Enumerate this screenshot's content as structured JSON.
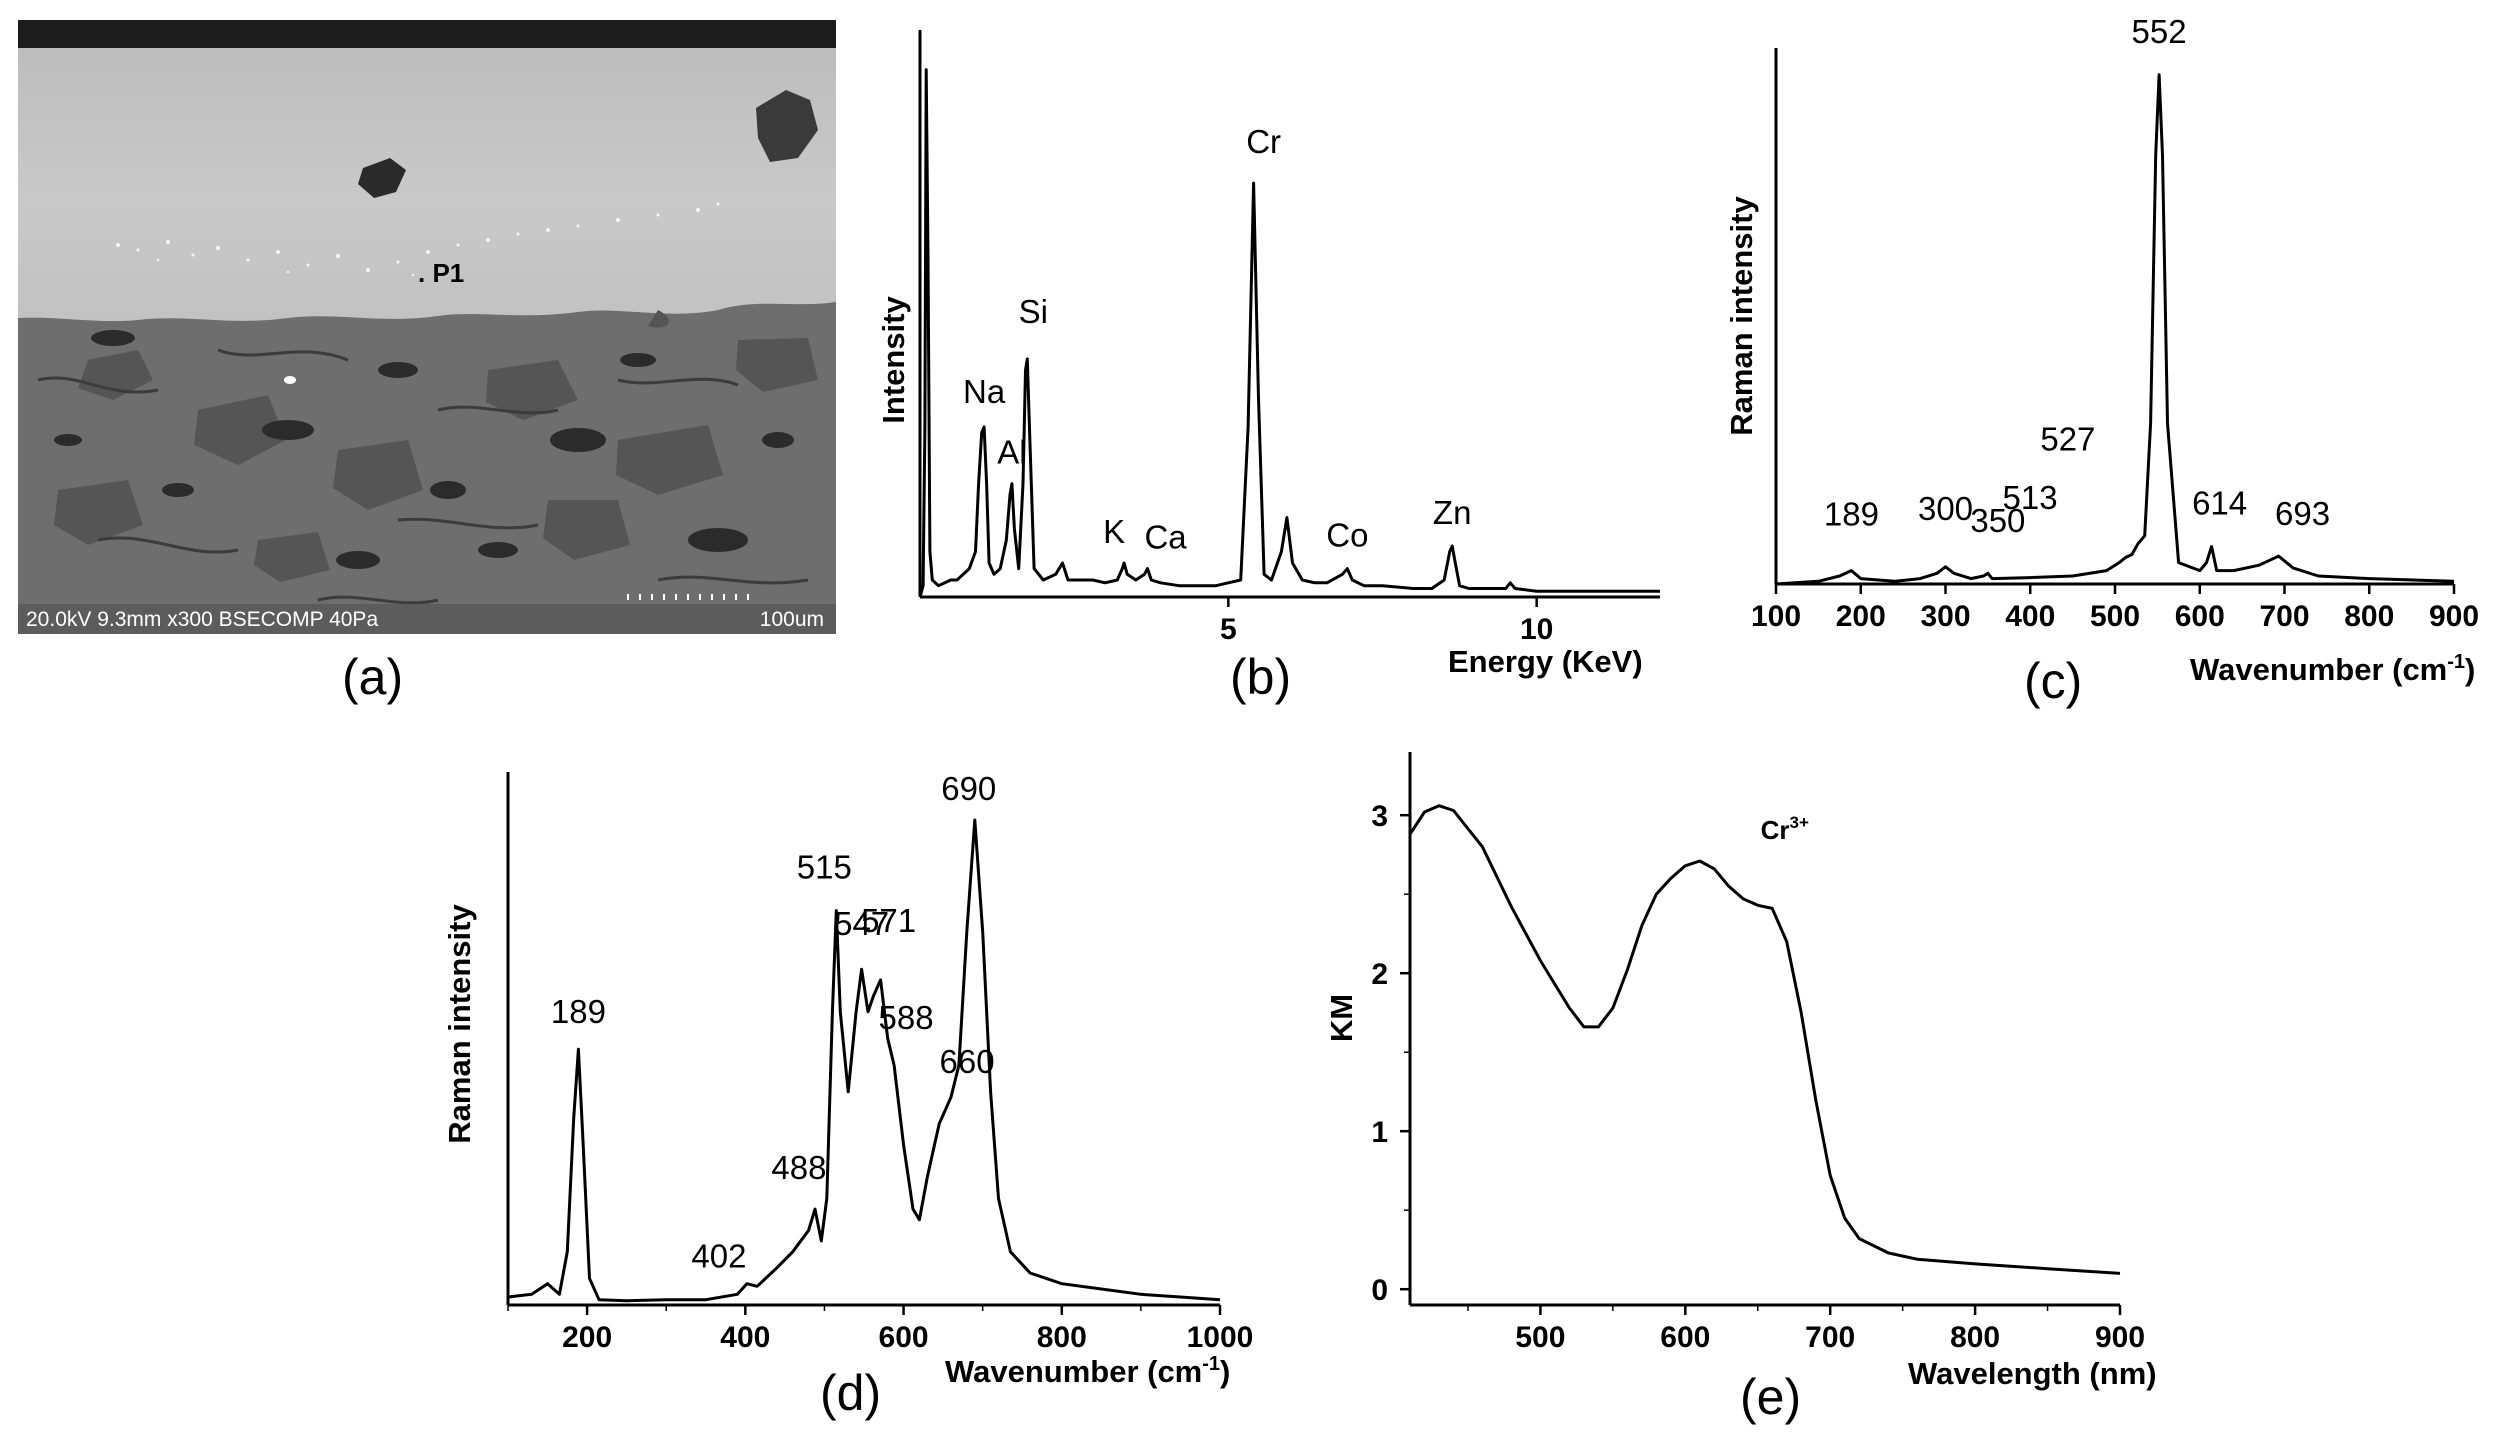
{
  "panel_labels": [
    "(a)",
    "(b)",
    "(c)",
    "(d)",
    "(e)"
  ],
  "sem_image": {
    "info_bar": "20.0kV 9.3mm x300 BSECOMP 40Pa",
    "scale_label": "100um",
    "point_label": ". P1"
  },
  "chart_data": [
    {
      "panel": "b",
      "type": "line",
      "title": "",
      "xlabel": "Energy (KeV)",
      "ylabel": "Intensity",
      "xlim": [
        0,
        12
      ],
      "ylim": [
        0,
        100
      ],
      "xticks": [
        5,
        10
      ],
      "xtick_labels": [
        "5",
        "10"
      ],
      "grid": false,
      "peaks": [
        {
          "label": "Na",
          "x": 1.04,
          "y": 30
        },
        {
          "label": "Al",
          "x": 1.49,
          "y": 20
        },
        {
          "label": "Si",
          "x": 1.74,
          "y": 42
        },
        {
          "label": "K",
          "x": 3.31,
          "y": 6
        },
        {
          "label": "Ca",
          "x": 3.69,
          "y": 5
        },
        {
          "label": "Cr",
          "x": 5.41,
          "y": 73
        },
        {
          "label": "Co",
          "x": 6.93,
          "y": 5
        },
        {
          "label": "Zn",
          "x": 8.63,
          "y": 9
        }
      ],
      "series": [
        {
          "x": [
            0.0,
            0.05,
            0.08,
            0.1,
            0.13,
            0.16,
            0.2,
            0.3,
            0.5,
            0.6,
            0.7,
            0.8,
            0.9,
            0.95,
            1.0,
            1.04,
            1.08,
            1.12,
            1.2,
            1.3,
            1.4,
            1.46,
            1.49,
            1.53,
            1.6,
            1.67,
            1.71,
            1.74,
            1.78,
            1.85,
            2.0,
            2.2,
            2.31,
            2.4,
            2.6,
            2.8,
            3.0,
            3.2,
            3.28,
            3.31,
            3.36,
            3.5,
            3.64,
            3.69,
            3.75,
            3.9,
            4.2,
            4.5,
            4.8,
            5.0,
            5.2,
            5.32,
            5.41,
            5.49,
            5.58,
            5.7,
            5.86,
            5.95,
            6.04,
            6.2,
            6.4,
            6.6,
            6.85,
            6.93,
            7.01,
            7.2,
            7.5,
            8.0,
            8.3,
            8.5,
            8.59,
            8.63,
            8.68,
            8.75,
            8.9,
            9.2,
            9.5,
            9.57,
            9.65,
            10.0,
            10.5,
            11.0,
            11.5,
            12.0
          ],
          "y": [
            0,
            2,
            30,
            93,
            60,
            8,
            3,
            2,
            3,
            3,
            4,
            5,
            8,
            20,
            29,
            30,
            20,
            6,
            4,
            5,
            10,
            18,
            20,
            12,
            5,
            20,
            40,
            42,
            28,
            5,
            3,
            4,
            6,
            3,
            3,
            3,
            2.5,
            3,
            5,
            6,
            4,
            3,
            4,
            5,
            3,
            2.5,
            2,
            2,
            2,
            2.5,
            3,
            30,
            73,
            35,
            4,
            3,
            8,
            14,
            6,
            3,
            2.5,
            2.5,
            4,
            5,
            3,
            2,
            2,
            1.5,
            1.5,
            3,
            8,
            9,
            6,
            2,
            1.5,
            1.5,
            1.5,
            2.5,
            1.5,
            1,
            1,
            1,
            1,
            1
          ]
        }
      ]
    },
    {
      "panel": "c",
      "type": "line",
      "title": "",
      "xlabel": "Wavenumber (cm",
      "xlabel_sup": "-1",
      "xlabel_end": ")",
      "ylabel": "Raman intensity",
      "xlim": [
        100,
        900
      ],
      "ylim": [
        0,
        100
      ],
      "xticks": [
        100,
        200,
        300,
        400,
        500,
        600,
        700,
        800,
        900
      ],
      "grid": false,
      "peaks": [
        {
          "label": "189",
          "x": 189,
          "y": 2
        },
        {
          "label": "300",
          "x": 300,
          "y": 3
        },
        {
          "label": "350",
          "x": 350,
          "y": 1.5
        },
        {
          "label": "513",
          "x": 513,
          "y": 5
        },
        {
          "label": "527",
          "x": 527,
          "y": 7
        },
        {
          "label": "552",
          "x": 552,
          "y": 95
        },
        {
          "label": "614",
          "x": 614,
          "y": 7
        },
        {
          "label": "693",
          "x": 693,
          "y": 5
        }
      ],
      "series": [
        {
          "x": [
            100,
            150,
            175,
            189,
            200,
            240,
            270,
            290,
            300,
            310,
            330,
            345,
            350,
            355,
            400,
            450,
            490,
            505,
            513,
            520,
            527,
            535,
            542,
            548,
            552,
            556,
            562,
            575,
            600,
            608,
            614,
            620,
            640,
            670,
            693,
            710,
            740,
            800,
            900
          ],
          "y": [
            0,
            0.5,
            1.5,
            2.5,
            1,
            0.5,
            1,
            2,
            3.2,
            2,
            1,
            1.5,
            2,
            1,
            1.2,
            1.5,
            2.5,
            4,
            5,
            5.5,
            7.5,
            9,
            30,
            80,
            95,
            80,
            30,
            4,
            2.5,
            4,
            7,
            2.5,
            2.5,
            3.5,
            5.2,
            3,
            1.5,
            1,
            0.5
          ]
        }
      ]
    },
    {
      "panel": "d",
      "type": "line",
      "title": "",
      "xlabel": "Wavenumber (cm",
      "xlabel_sup": "-1",
      "xlabel_end": ")",
      "ylabel": "Raman intensity",
      "xlim": [
        100,
        1000
      ],
      "ylim": [
        0,
        100
      ],
      "xticks": [
        200,
        400,
        600,
        800,
        1000
      ],
      "grid": false,
      "peaks": [
        {
          "label": "189",
          "x": 189,
          "y": 48
        },
        {
          "label": "402",
          "x": 402,
          "y": 4
        },
        {
          "label": "488",
          "x": 488,
          "y": 18
        },
        {
          "label": "515",
          "x": 515,
          "y": 74
        },
        {
          "label": "547",
          "x": 547,
          "y": 63
        },
        {
          "label": "571",
          "x": 571,
          "y": 61
        },
        {
          "label": "588",
          "x": 588,
          "y": 45
        },
        {
          "label": "660",
          "x": 660,
          "y": 39
        },
        {
          "label": "690",
          "x": 690,
          "y": 91
        }
      ],
      "series": [
        {
          "x": [
            100,
            130,
            150,
            165,
            175,
            183,
            189,
            195,
            203,
            215,
            250,
            300,
            350,
            390,
            402,
            415,
            440,
            460,
            480,
            488,
            496,
            503,
            510,
            515,
            520,
            530,
            540,
            547,
            555,
            562,
            571,
            580,
            588,
            600,
            612,
            620,
            630,
            645,
            660,
            670,
            680,
            690,
            700,
            710,
            720,
            735,
            760,
            800,
            850,
            900,
            950,
            1000
          ],
          "y": [
            1.5,
            2,
            4,
            2,
            10,
            35,
            48,
            30,
            5,
            1,
            0.8,
            1,
            1,
            2,
            4,
            3.5,
            7,
            10,
            14,
            18,
            12,
            20,
            55,
            74,
            55,
            40,
            55,
            63,
            55,
            58,
            61,
            50,
            45,
            30,
            18,
            16,
            24,
            34,
            39,
            45,
            70,
            91,
            70,
            40,
            20,
            10,
            6,
            4,
            3,
            2,
            1.5,
            1
          ]
        }
      ]
    },
    {
      "panel": "e",
      "type": "line",
      "title": "",
      "xlabel": "Wavelength (nm)",
      "ylabel": "KM",
      "xlim": [
        410,
        900
      ],
      "ylim": [
        -0.1,
        3.4
      ],
      "xticks": [
        500,
        600,
        700,
        800,
        900
      ],
      "yticks": [
        0,
        1,
        2,
        3
      ],
      "grid": false,
      "annotation": {
        "text": "Cr",
        "sup": "3+",
        "x": 652,
        "y": 2.85
      },
      "series": [
        {
          "x": [
            410,
            420,
            430,
            440,
            460,
            480,
            500,
            520,
            530,
            540,
            550,
            560,
            570,
            580,
            590,
            600,
            610,
            620,
            630,
            640,
            650,
            660,
            670,
            680,
            690,
            700,
            710,
            720,
            740,
            760,
            800,
            850,
            900
          ],
          "y": [
            2.88,
            3.02,
            3.06,
            3.03,
            2.8,
            2.42,
            2.08,
            1.78,
            1.66,
            1.66,
            1.78,
            2.02,
            2.3,
            2.5,
            2.6,
            2.68,
            2.71,
            2.66,
            2.55,
            2.47,
            2.43,
            2.41,
            2.2,
            1.75,
            1.2,
            0.72,
            0.45,
            0.32,
            0.23,
            0.19,
            0.16,
            0.13,
            0.1
          ]
        }
      ]
    }
  ]
}
